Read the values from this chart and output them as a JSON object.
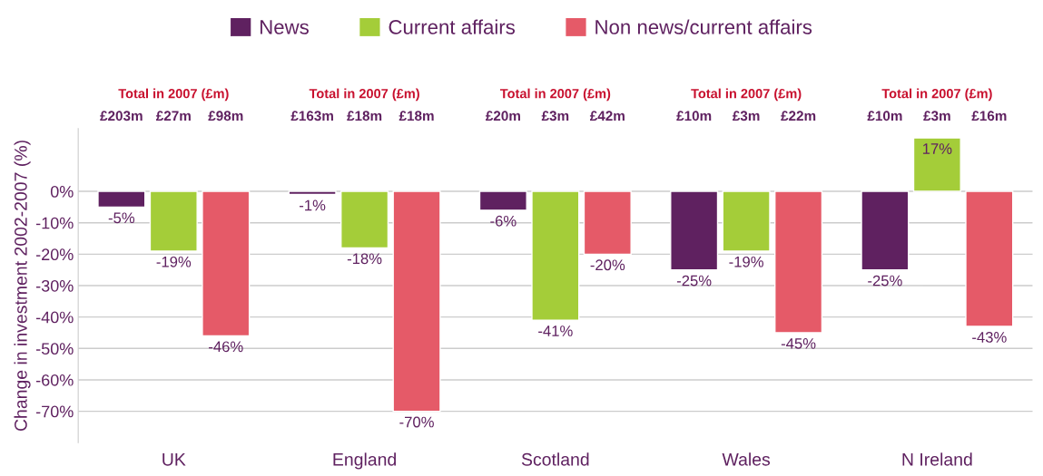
{
  "chart_data": {
    "type": "bar",
    "ylabel": "Change in investment 2002-2007 (%)",
    "categories": [
      "UK",
      "England",
      "Scotland",
      "Wales",
      "N Ireland"
    ],
    "series": [
      {
        "name": "News",
        "color": "#5f2160",
        "values": [
          -5,
          -1,
          -6,
          -25,
          -25
        ],
        "value_labels": [
          "-5%",
          "-1%",
          "-6%",
          "-25%",
          "-25%"
        ]
      },
      {
        "name": "Current affairs",
        "color": "#a4cd39",
        "values": [
          -19,
          -18,
          -41,
          -19,
          17
        ],
        "value_labels": [
          "-19%",
          "-18%",
          "-41%",
          "-19%",
          "17%"
        ]
      },
      {
        "name": "Non news/current affairs",
        "color": "#e55a68",
        "values": [
          -46,
          -70,
          -20,
          -45,
          -43
        ],
        "value_labels": [
          "-46%",
          "-70%",
          "-20%",
          "-45%",
          "-43%"
        ]
      }
    ],
    "ylim": [
      -80,
      20
    ],
    "yticks": [
      {
        "value": 0,
        "label": "0%"
      },
      {
        "value": -10,
        "label": "-10%"
      },
      {
        "value": -20,
        "label": "-20%"
      },
      {
        "value": -30,
        "label": "-30%"
      },
      {
        "value": -40,
        "label": "-40%"
      },
      {
        "value": -50,
        "label": "-50%"
      },
      {
        "value": -60,
        "label": "-60%"
      },
      {
        "value": -70,
        "label": "-70%"
      }
    ],
    "grid": "y",
    "legend": "top",
    "annotations": [
      "Total in 2007 (£m)",
      "£203m",
      "£27m",
      "£98m",
      "Total in 2007 (£m)",
      "£163m",
      "£18m",
      "£18m",
      "Total in 2007 (£m)",
      "£20m",
      "£3m",
      "£42m",
      "Total in 2007 (£m)",
      "£10m",
      "£3m",
      "£22m",
      "Total in 2007 (£m)",
      "£10m",
      "£3m",
      "£16m"
    ]
  }
}
